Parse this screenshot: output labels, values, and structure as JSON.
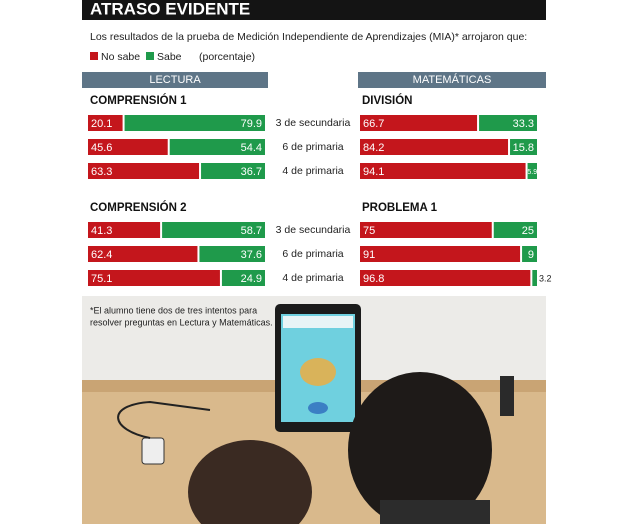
{
  "header": {
    "title": "ATRASO EVIDENTE",
    "subtitle": "Los resultados de la prueba de Medición Independiente de Aprendizajes (MIA)* arrojaron que:",
    "unit": "(porcentaje)"
  },
  "sections": [
    "LECTURA",
    "MATEMÁTICAS"
  ],
  "footnote": [
    "*El alumno tiene dos de tres intentos para",
    "resolver preguntas en Lectura y Matemáticas."
  ],
  "chart_data": [
    {
      "type": "bar",
      "stacked": true,
      "orientation": "horizontal",
      "title": "COMPRENSIÓN 1",
      "categories": [
        "3 de secundaria",
        "6 de primaria",
        "4 de primaria"
      ],
      "series": [
        {
          "name": "No sabe",
          "color": "#c4161c",
          "values": [
            20.1,
            45.6,
            63.3
          ]
        },
        {
          "name": "Sabe",
          "color": "#1f9a4b",
          "values": [
            79.9,
            54.4,
            36.7
          ]
        }
      ]
    },
    {
      "type": "bar",
      "stacked": true,
      "orientation": "horizontal",
      "title": "DIVISIÓN",
      "series": [
        {
          "values": [
            66.7,
            84.2,
            94.1
          ]
        },
        {
          "values": [
            33.3,
            15.8,
            5.9
          ]
        }
      ]
    },
    {
      "type": "bar",
      "stacked": true,
      "orientation": "horizontal",
      "title": "COMPRENSIÓN 2",
      "categories": [
        "3 de secundaria",
        "6 de primaria",
        "4 de primaria"
      ],
      "series": [
        {
          "values": [
            41.3,
            62.4,
            75.1
          ]
        },
        {
          "values": [
            58.7,
            37.6,
            24.9
          ]
        }
      ]
    },
    {
      "type": "bar",
      "stacked": true,
      "orientation": "horizontal",
      "title": "PROBLEMA 1",
      "series": [
        {
          "values": [
            75,
            91,
            96.8
          ]
        },
        {
          "values": [
            25,
            9,
            3.2
          ]
        }
      ]
    }
  ]
}
